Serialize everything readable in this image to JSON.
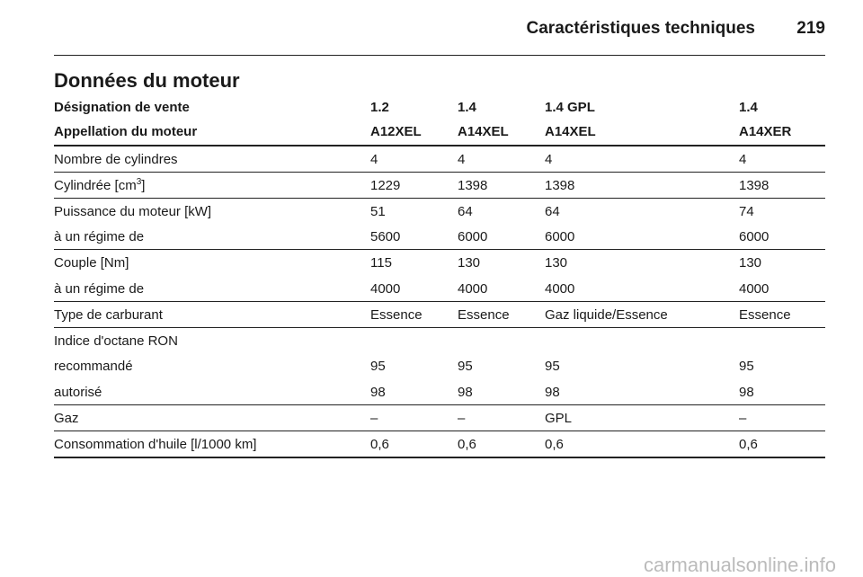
{
  "header": {
    "title": "Caractéristiques techniques",
    "page": "219"
  },
  "section": {
    "title": "Données du moteur"
  },
  "table": {
    "head": [
      [
        "Désignation de vente",
        "1.2",
        "1.4",
        "1.4 GPL",
        "1.4"
      ],
      [
        "Appellation du moteur",
        "A12XEL",
        "A14XEL",
        "A14XEL",
        "A14XER"
      ]
    ],
    "groups": [
      [
        [
          "Nombre de cylindres",
          "4",
          "4",
          "4",
          "4"
        ]
      ],
      [
        [
          [
            "Cylindrée [cm",
            "3",
            "]"
          ],
          "1229",
          "1398",
          "1398",
          "1398"
        ]
      ],
      [
        [
          "Puissance du moteur [kW]",
          "51",
          "64",
          "64",
          "74"
        ],
        [
          "à un régime de",
          "5600",
          "6000",
          "6000",
          "6000"
        ]
      ],
      [
        [
          "Couple [Nm]",
          "115",
          "130",
          "130",
          "130"
        ],
        [
          "à un régime de",
          "4000",
          "4000",
          "4000",
          "4000"
        ]
      ],
      [
        [
          "Type de carburant",
          "Essence",
          "Essence",
          "Gaz liquide/Essence",
          "Essence"
        ]
      ],
      [
        [
          "Indice d'octane RON"
        ],
        [
          "recommandé",
          "95",
          "95",
          "95",
          "95"
        ],
        [
          "autorisé",
          "98",
          "98",
          "98",
          "98"
        ]
      ],
      [
        [
          "Gaz",
          "–",
          "–",
          "GPL",
          "–"
        ]
      ],
      [
        [
          "Consommation d'huile [l/1000 km]",
          "0,6",
          "0,6",
          "0,6",
          "0,6"
        ]
      ]
    ]
  },
  "watermark": "carmanualsonline.info"
}
